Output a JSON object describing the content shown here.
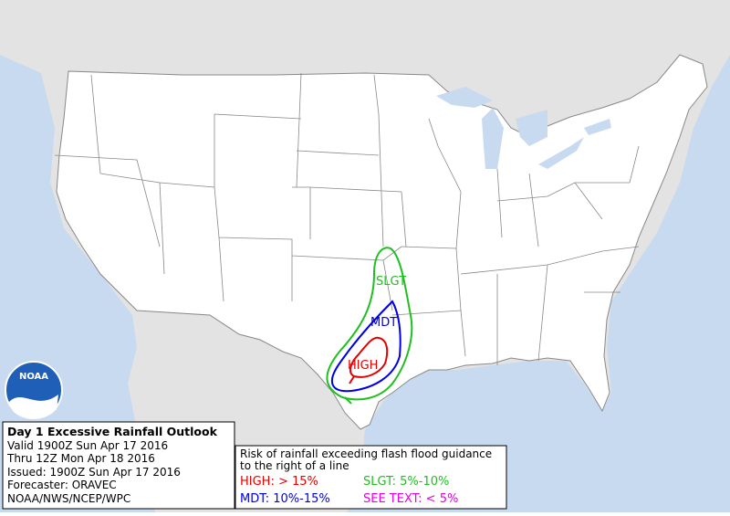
{
  "map": {
    "contours": [
      {
        "label": "SLGT",
        "color": "#1fbf1f"
      },
      {
        "label": "MDT",
        "color": "#0000e6"
      },
      {
        "label": "HIGH",
        "color": "#e60000"
      }
    ]
  },
  "logo": {
    "text": "NOAA"
  },
  "info_box": {
    "title": "Day 1 Excessive Rainfall Outlook",
    "lines": [
      "Valid 1900Z Sun Apr 17 2016",
      "Thru 12Z Mon Apr 18 2016",
      "Issued: 1900Z Sun Apr 17 2016",
      "Forecaster: ORAVEC",
      "NOAA/NWS/NCEP/WPC"
    ]
  },
  "legend": {
    "description": [
      "Risk of rainfall exceeding flash flood guidance",
      "to the right of a line"
    ],
    "entries": [
      {
        "label": "HIGH: > 15%",
        "color": "#e60000"
      },
      {
        "label": "SLGT: 5%-10%",
        "color": "#1fbf1f"
      },
      {
        "label": "MDT: 10%-15%",
        "color": "#0000e6"
      },
      {
        "label": "SEE TEXT: < 5%",
        "color": "#e600e6"
      }
    ]
  }
}
